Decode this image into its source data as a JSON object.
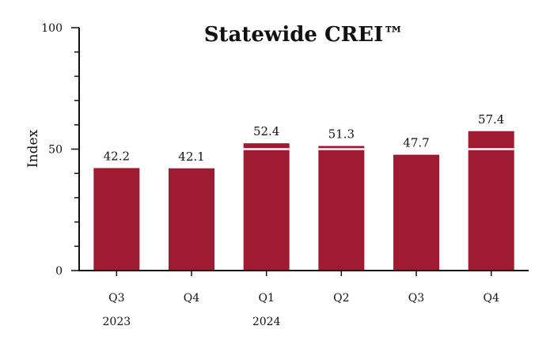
{
  "chart_data": {
    "type": "bar",
    "title": "Statewide CREI™",
    "xlabel": "",
    "ylabel": "Index",
    "ylim": [
      0,
      100
    ],
    "yticks": [
      0,
      50,
      100
    ],
    "categories": [
      "Q3",
      "Q4",
      "Q1",
      "Q2",
      "Q3",
      "Q4"
    ],
    "year_labels": [
      "2023",
      "",
      "2024",
      "",
      "",
      ""
    ],
    "values": [
      42.2,
      42.1,
      52.4,
      51.3,
      47.7,
      57.4
    ],
    "value_labels": [
      "42.2",
      "42.1",
      "52.4",
      "51.3",
      "47.7",
      "57.4"
    ],
    "reference_line": 50,
    "grid": false,
    "legend": "none",
    "colors": {
      "bar": "#9e1b32",
      "reference": "#ffffff",
      "axis": "#111111"
    }
  }
}
